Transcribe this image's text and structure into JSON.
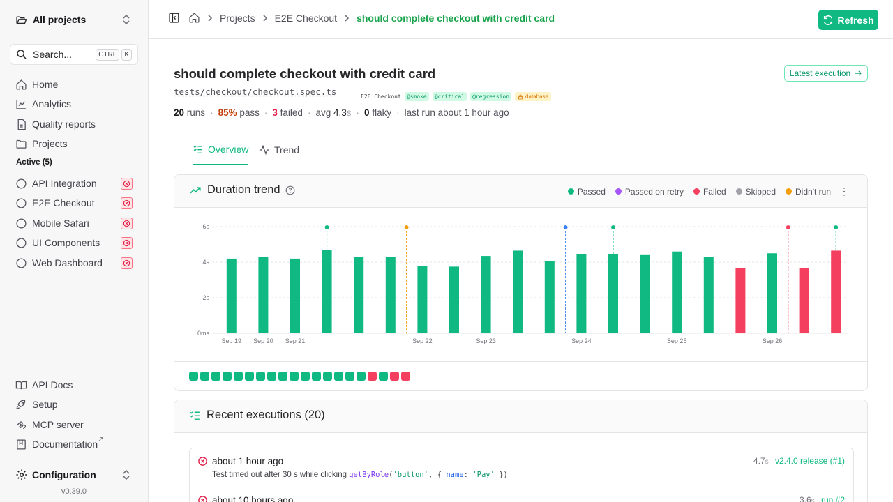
{
  "sidebar": {
    "project_switcher": "All projects",
    "search": {
      "label": "Search...",
      "kbd1": "CTRL",
      "kbd2": "K"
    },
    "nav": [
      {
        "label": "Home",
        "icon": "home-icon"
      },
      {
        "label": "Analytics",
        "icon": "analytics-icon"
      },
      {
        "label": "Quality reports",
        "icon": "report-icon"
      },
      {
        "label": "Projects",
        "icon": "folder-icon"
      }
    ],
    "active_section": "Active (5)",
    "projects": [
      "API Integration",
      "E2E Checkout",
      "Mobile Safari",
      "UI Components",
      "Web Dashboard"
    ],
    "footer_nav": [
      {
        "label": "API Docs",
        "icon": "book-icon"
      },
      {
        "label": "Setup",
        "icon": "rocket-icon"
      },
      {
        "label": "MCP server",
        "icon": "mcp-icon"
      },
      {
        "label": "Documentation",
        "icon": "bookmark-icon"
      }
    ],
    "external_mark": "↗",
    "configuration": "Configuration",
    "version": "v0.39.0"
  },
  "topbar": {
    "crumbs": [
      "Projects",
      "E2E Checkout"
    ],
    "current": "should complete checkout with credit card",
    "refresh": "Refresh"
  },
  "test": {
    "title": "should complete checkout with credit card",
    "path": "tests/checkout/checkout.spec.ts",
    "suite": "E2E Checkout",
    "tags": [
      "@smoke",
      "@critical",
      "@regression"
    ],
    "db_tag": "database",
    "latest_execution": "Latest execution",
    "stats": {
      "runs": "20",
      "runs_label": "runs",
      "pass": "85%",
      "pass_label": "pass",
      "failed": "3",
      "failed_label": "failed",
      "avg_label": "avg",
      "avg": "4.3",
      "avg_unit": "s",
      "flaky": "0",
      "flaky_label": "flaky",
      "last_run": "last run about 1 hour ago"
    }
  },
  "tabs": [
    "Overview",
    "Trend"
  ],
  "trend": {
    "title": "Duration trend",
    "legend": [
      {
        "label": "Passed",
        "color": "#10b981"
      },
      {
        "label": "Passed on retry",
        "color": "#a855f7"
      },
      {
        "label": "Failed",
        "color": "#f43f5e"
      },
      {
        "label": "Skipped",
        "color": "#a1a1aa"
      },
      {
        "label": "Didn't run",
        "color": "#f59e0b"
      }
    ]
  },
  "chart_data": {
    "type": "bar",
    "ylim": [
      0,
      6
    ],
    "yticks": [
      "0ms",
      "2s",
      "4s",
      "6s"
    ],
    "ytick_values": [
      0,
      2,
      4,
      6
    ],
    "xtick_labels": [
      "Sep 19",
      "Sep 20",
      "Sep 21",
      "Sep 22",
      "Sep 23",
      "Sep 24",
      "Sep 25",
      "Sep 26"
    ],
    "xtick_index": [
      0,
      1,
      2,
      6,
      8,
      11,
      14,
      17
    ],
    "values": [
      4.2,
      4.3,
      4.2,
      4.7,
      4.3,
      4.3,
      3.8,
      3.75,
      4.35,
      4.65,
      4.05,
      4.45,
      4.45,
      4.4,
      4.6,
      4.3,
      3.65,
      4.5,
      3.65,
      4.65
    ],
    "status": [
      "passed",
      "passed",
      "passed",
      "passed",
      "passed",
      "passed",
      "passed",
      "passed",
      "passed",
      "passed",
      "passed",
      "passed",
      "passed",
      "passed",
      "passed",
      "passed",
      "failed",
      "passed",
      "failed",
      "failed"
    ],
    "markers": [
      {
        "after_index": 3,
        "color": "#10b981",
        "pos": "on"
      },
      {
        "after_index": 5,
        "color": "#f59e0b",
        "pos": "after"
      },
      {
        "after_index": 10,
        "color": "#3b82f6",
        "pos": "after"
      },
      {
        "after_index": 12,
        "color": "#10b981",
        "pos": "on"
      },
      {
        "after_index": 17,
        "color": "#f43f5e",
        "pos": "after"
      },
      {
        "after_index": 19,
        "color": "#10b981",
        "pos": "on"
      }
    ],
    "colors": {
      "passed": "#10b981",
      "failed": "#f43f5e"
    }
  },
  "strip": [
    "passed",
    "passed",
    "passed",
    "passed",
    "passed",
    "passed",
    "passed",
    "passed",
    "passed",
    "passed",
    "passed",
    "passed",
    "passed",
    "passed",
    "passed",
    "passed",
    "failed",
    "passed",
    "failed",
    "failed"
  ],
  "executions": {
    "title": "Recent executions (20)",
    "rows": [
      {
        "when": "about 1 hour ago",
        "msg_prefix": "Test timed out after 30 s while clicking ",
        "code_fn": "getByRole",
        "code_open": "(",
        "code_arg1": "'button'",
        "code_mid": ", { ",
        "code_key": "name",
        "code_colon": ": ",
        "code_arg2": "'Pay'",
        "code_close": " })",
        "duration": "4.7",
        "dur_unit": "s",
        "release": "v2.4.0 release (#1)"
      },
      {
        "when": "about 10 hours ago",
        "duration": "3.6",
        "dur_unit": "s",
        "release": "run #2"
      }
    ]
  }
}
